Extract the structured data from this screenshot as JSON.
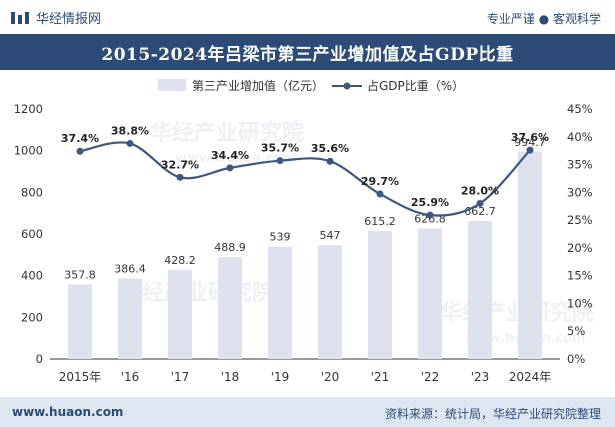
{
  "header": {
    "brand_name": "华经情报网",
    "slogan": "专业严谨 ● 客观科学",
    "logo_icon": "huajing-logo-icon"
  },
  "footer": {
    "website": "www.huaon.com",
    "source": "资料来源：统计局，华经产业研究院整理"
  },
  "watermark": {
    "text": "华经产业研究院",
    "url": "www.huaon.com"
  },
  "colors": {
    "title_bg": "#2c4b76",
    "bar": "#dde2ee",
    "line": "#3f5780",
    "footer_bg": "#dde6f1",
    "brand_text": "#2d4a75"
  },
  "chart_data": {
    "type": "bar",
    "title": "2015-2024年吕梁市第三产业增加值及占GDP比重",
    "categories": [
      "2015年",
      "'16",
      "'17",
      "'18",
      "'19",
      "'20",
      "'21",
      "'22",
      "'23",
      "2024年"
    ],
    "series": [
      {
        "name": "第三产业增加值（亿元）",
        "type": "bar",
        "axis": "left",
        "values": [
          357.8,
          386.4,
          428.2,
          488.9,
          539,
          547,
          615.2,
          626.8,
          662.7,
          994.7
        ],
        "labels": [
          "357.8",
          "386.4",
          "428.2",
          "488.9",
          "539",
          "547",
          "615.2",
          "626.8",
          "662.7",
          "994.7"
        ]
      },
      {
        "name": "占GDP比重（%）",
        "type": "line",
        "axis": "right",
        "values": [
          37.4,
          38.8,
          32.7,
          34.4,
          35.7,
          35.6,
          29.7,
          25.9,
          28.0,
          37.6
        ],
        "labels": [
          "37.4%",
          "38.8%",
          "32.7%",
          "34.4%",
          "35.7%",
          "35.6%",
          "29.7%",
          "25.9%",
          "28.0%",
          "37.6%"
        ]
      }
    ],
    "y_left": {
      "ylim": [
        0,
        1200
      ],
      "ticks": [
        "0",
        "200",
        "400",
        "600",
        "800",
        "1000",
        "1200"
      ]
    },
    "y_right": {
      "ylim": [
        0,
        45
      ],
      "ticks": [
        "0%",
        "5%",
        "10%",
        "15%",
        "20%",
        "25%",
        "30%",
        "35%",
        "40%",
        "45%"
      ]
    },
    "legend_position": "top-center",
    "grid": false
  }
}
